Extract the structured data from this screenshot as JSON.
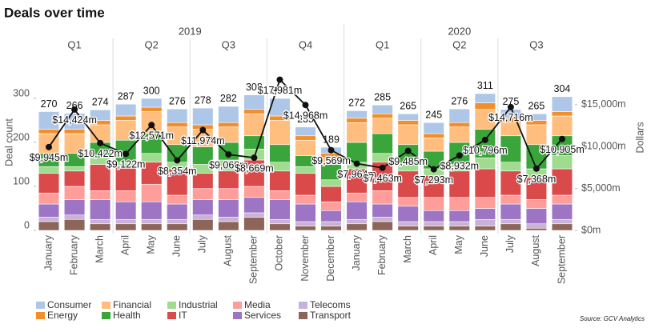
{
  "chart_data": {
    "type": "bar",
    "stacked": true,
    "title": "Deals over time",
    "source": "Source: GCV Analytics",
    "y_label": "Deal count",
    "y2_label": "Dollars",
    "x_groups": [
      {
        "year": "2019",
        "quarters": [
          "Q1",
          "Q2",
          "Q3",
          "Q4"
        ]
      },
      {
        "year": "2020",
        "quarters": [
          "Q1",
          "Q2",
          "Q3"
        ]
      }
    ],
    "categories": [
      "January",
      "February",
      "March",
      "April",
      "May",
      "June",
      "July",
      "August",
      "September",
      "October",
      "November",
      "December",
      "January",
      "February",
      "March",
      "April",
      "May",
      "June",
      "July",
      "August",
      "September"
    ],
    "series": [
      {
        "name": "Consumer",
        "color": "#aec7e8",
        "values": [
          40,
          36,
          24,
          27,
          20,
          31,
          38,
          37,
          33,
          40,
          20,
          14,
          17,
          20,
          15,
          25,
          31,
          21,
          20,
          15,
          34
        ]
      },
      {
        "name": "Energy",
        "color": "#f28e2b",
        "values": [
          10,
          10,
          10,
          10,
          10,
          10,
          10,
          10,
          10,
          10,
          10,
          10,
          10,
          10,
          10,
          10,
          10,
          15,
          10,
          10,
          10
        ]
      },
      {
        "name": "Financial",
        "color": "#ffbe7d",
        "values": [
          45,
          45,
          40,
          45,
          50,
          40,
          40,
          35,
          50,
          55,
          35,
          15,
          45,
          35,
          45,
          30,
          35,
          45,
          30,
          45,
          45
        ]
      },
      {
        "name": "Health",
        "color": "#3aa53a",
        "values": [
          30,
          30,
          35,
          50,
          45,
          40,
          40,
          40,
          30,
          40,
          25,
          35,
          45,
          45,
          45,
          40,
          50,
          65,
          60,
          55,
          45
        ]
      },
      {
        "name": "Industrial",
        "color": "#9fdc8f",
        "values": [
          15,
          10,
          15,
          10,
          20,
          15,
          20,
          25,
          25,
          20,
          15,
          15,
          15,
          20,
          15,
          15,
          15,
          25,
          20,
          20,
          30
        ]
      },
      {
        "name": "IT",
        "color": "#db4a4a",
        "values": [
          45,
          35,
          60,
          55,
          50,
          60,
          35,
          40,
          60,
          45,
          50,
          35,
          55,
          65,
          60,
          50,
          60,
          65,
          55,
          50,
          60
        ]
      },
      {
        "name": "Media",
        "color": "#ff9d9a",
        "values": [
          25,
          30,
          20,
          25,
          40,
          20,
          25,
          25,
          25,
          20,
          20,
          20,
          20,
          30,
          20,
          30,
          30,
          25,
          20,
          20,
          20
        ]
      },
      {
        "name": "Services",
        "color": "#9d75c4",
        "values": [
          30,
          35,
          45,
          40,
          40,
          35,
          35,
          40,
          35,
          45,
          40,
          25,
          40,
          30,
          35,
          25,
          25,
          25,
          35,
          35,
          35
        ]
      },
      {
        "name": "Telecoms",
        "color": "#c9b2d8",
        "values": [
          10,
          10,
          10,
          10,
          10,
          10,
          10,
          10,
          10,
          10,
          10,
          10,
          10,
          10,
          10,
          10,
          10,
          15,
          10,
          10,
          10
        ]
      },
      {
        "name": "Transport",
        "color": "#8c6458",
        "values": [
          20,
          25,
          15,
          15,
          15,
          15,
          25,
          20,
          30,
          15,
          10,
          10,
          15,
          20,
          10,
          10,
          10,
          10,
          15,
          5,
          15
        ]
      }
    ],
    "totals": [
      270,
      266,
      274,
      287,
      300,
      276,
      278,
      282,
      308,
      300,
      235,
      189,
      272,
      285,
      265,
      245,
      276,
      311,
      275,
      265,
      304
    ],
    "line": {
      "axis": "y2",
      "color": "#111111",
      "values": [
        9945,
        14424,
        10422,
        9122,
        12571,
        8354,
        11974,
        9060,
        8669,
        17981,
        14968,
        9569,
        7964,
        7463,
        9485,
        7293,
        8932,
        10796,
        14716,
        7368,
        10905
      ],
      "value_labels": [
        "$9,945m",
        "$14,424m",
        "$10,422m",
        "$9,122m",
        "$12,571m",
        "$8,354m",
        "$11,974m",
        "$9,060m",
        "$8,669m",
        "$17,981m",
        "$14,968m",
        "$9,569m",
        "$7,964m",
        "$7,463m",
        "$9,485m",
        "$7,293m",
        "$8,932m",
        "$10,796m",
        "$14,716m",
        "$7,368m",
        "$10,905m"
      ]
    },
    "ylim": [
      0,
      400
    ],
    "yticks": [
      0,
      100,
      200,
      300
    ],
    "y2lim": [
      0,
      21000
    ],
    "y2ticks": [
      {
        "value": 0,
        "label": "$0m"
      },
      {
        "value": 5000,
        "label": "$5,000m"
      },
      {
        "value": 10000,
        "label": "$10,000m"
      },
      {
        "value": 15000,
        "label": "$15,000m"
      }
    ],
    "legend": "bottom"
  }
}
